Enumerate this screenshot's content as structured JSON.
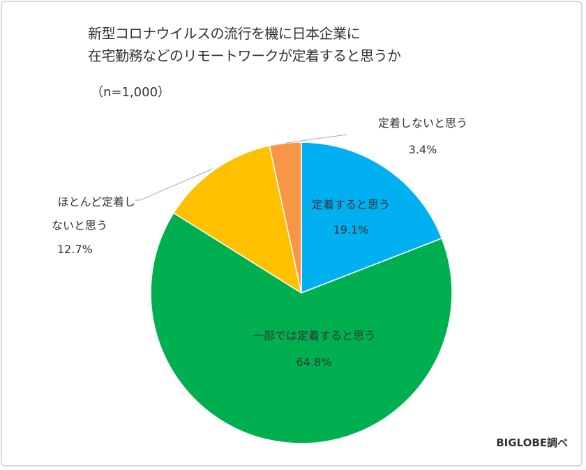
{
  "chart_data": {
    "type": "pie",
    "title_lines": [
      "新型コロナウイルスの流行を機に日本企業に",
      "在宅勤務などのリモートワークが定着すると思うか"
    ],
    "subtitle": "（n=1,000）",
    "start": "top",
    "direction": "clockwise",
    "slices": [
      {
        "label": "定着すると思う",
        "value": 19.1,
        "display": "19.1%",
        "color": "#00B0F0"
      },
      {
        "label": "一部では定着すると思う",
        "value": 64.8,
        "display": "64.8%",
        "color": "#00B050"
      },
      {
        "label": "ほとんど定着しないと思う",
        "label_lines": [
          "ほとんど定着し",
          "ないと思う"
        ],
        "value": 12.7,
        "display": "12.7%",
        "color": "#FFC000"
      },
      {
        "label": "定着しないと思う",
        "value": 3.4,
        "display": "3.4%",
        "color": "#F79646"
      }
    ],
    "source": "BIGLOBE調べ"
  }
}
